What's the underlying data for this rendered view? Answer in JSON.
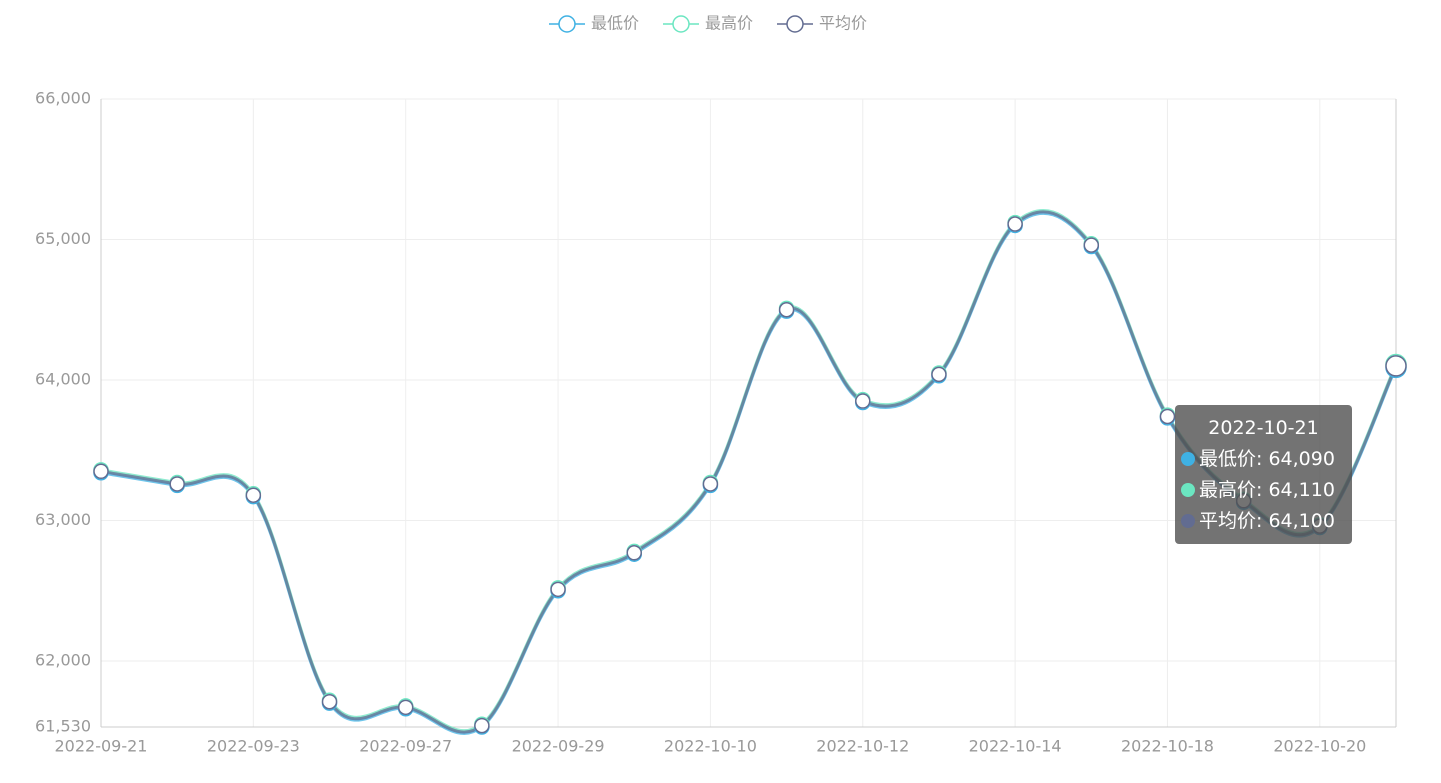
{
  "chart_data": {
    "type": "line",
    "categories": [
      "2022-09-21",
      null,
      "2022-09-23",
      null,
      "2022-09-27",
      null,
      "2022-09-29",
      null,
      "2022-10-10",
      null,
      "2022-10-12",
      null,
      "2022-10-14",
      null,
      "2022-10-18",
      null,
      "2022-10-20",
      null
    ],
    "series": [
      {
        "name": "最低价",
        "color": "#3fb1e3",
        "values": [
          63340,
          63250,
          63170,
          61700,
          61660,
          61530,
          62500,
          62760,
          63250,
          64490,
          63840,
          64030,
          65100,
          64950,
          63730,
          63130,
          62950,
          64090
        ]
      },
      {
        "name": "最高价",
        "color": "#6be6c1",
        "values": [
          63360,
          63270,
          63190,
          61720,
          61680,
          61550,
          62520,
          62780,
          63270,
          64510,
          63860,
          64050,
          65120,
          64970,
          63750,
          63150,
          62970,
          64110
        ]
      },
      {
        "name": "平均价",
        "color": "#626c91",
        "values": [
          63350,
          63260,
          63180,
          61710,
          61670,
          61540,
          62510,
          62770,
          63260,
          64500,
          63850,
          64040,
          65110,
          64960,
          63740,
          63140,
          62960,
          64100
        ]
      }
    ],
    "ylim": [
      61530,
      66000
    ],
    "yticks": [
      {
        "value": 61530,
        "label": "61,530"
      },
      {
        "value": 62000,
        "label": "62,000"
      },
      {
        "value": 63000,
        "label": "63,000"
      },
      {
        "value": 64000,
        "label": "64,000"
      },
      {
        "value": 65000,
        "label": "65,000"
      },
      {
        "value": 66000,
        "label": "66,000"
      }
    ],
    "grid": true,
    "legend": "top",
    "tooltip": {
      "title": "2022-10-21",
      "lines": [
        "最低价: 64,090",
        "最高价: 64,110",
        "平均价: 64,100"
      ]
    }
  }
}
